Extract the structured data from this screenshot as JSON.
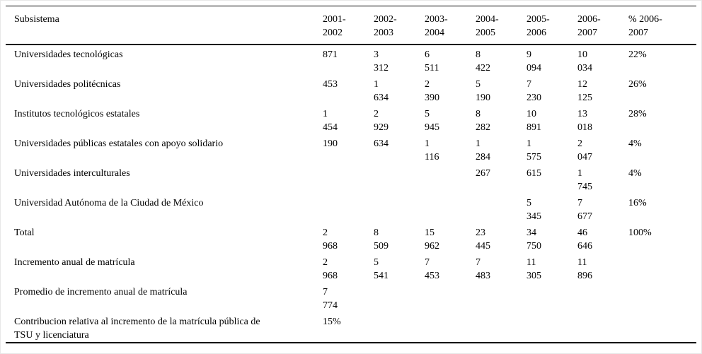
{
  "table": {
    "columns": [
      "Subsistema",
      "2001-\n2002",
      "2002-\n2003",
      "2003-\n2004",
      "2004-\n2005",
      "2005-\n2006",
      "2006-\n2007",
      "% 2006-\n2007"
    ],
    "rows": [
      {
        "label": "Universidades tecnológicas",
        "values": [
          "871",
          "3\n312",
          "6\n511",
          "8\n422",
          "9\n094",
          "10\n034",
          "22%"
        ]
      },
      {
        "label": "Universidades politécnicas",
        "values": [
          "453",
          "1\n634",
          "2\n390",
          "5\n190",
          "7\n230",
          "12\n125",
          "26%"
        ]
      },
      {
        "label": "Institutos tecnológicos estatales",
        "values": [
          "1\n454",
          "2\n929",
          "5\n945",
          "8\n282",
          "10\n891",
          "13\n018",
          "28%"
        ]
      },
      {
        "label": "Universidades públicas estatales con apoyo solidario",
        "values": [
          "190",
          "634",
          "1\n116",
          "1\n284",
          "1\n575",
          "2\n047",
          "4%"
        ]
      },
      {
        "label": "Universidades interculturales",
        "values": [
          "",
          "",
          "",
          "267",
          "615",
          "1\n745",
          "4%"
        ]
      },
      {
        "label": "Universidad Autónoma de la Ciudad de México",
        "values": [
          "",
          "",
          "",
          "",
          "5\n345",
          "7\n677",
          "16%"
        ]
      },
      {
        "label": "Total",
        "values": [
          "2\n968",
          "8\n509",
          "15\n962",
          "23\n445",
          "34\n750",
          "46\n646",
          "100%"
        ]
      },
      {
        "label": "Incremento anual de matrícula",
        "values": [
          "2\n968",
          "5\n541",
          "7\n453",
          "7\n483",
          "11\n305",
          "11\n896",
          ""
        ]
      },
      {
        "label": "Promedio de incremento anual de matrícula",
        "values": [
          "7\n774",
          "",
          "",
          "",
          "",
          "",
          ""
        ]
      },
      {
        "label": "Contribucion relativa al incremento de la matrícula pública de\nTSU y licenciatura",
        "values": [
          "15%",
          "",
          "",
          "",
          "",
          "",
          ""
        ]
      }
    ],
    "colors": {
      "text": "#000000",
      "rule": "#000000",
      "frame": "#e8e8e8",
      "background": "#ffffff"
    }
  }
}
